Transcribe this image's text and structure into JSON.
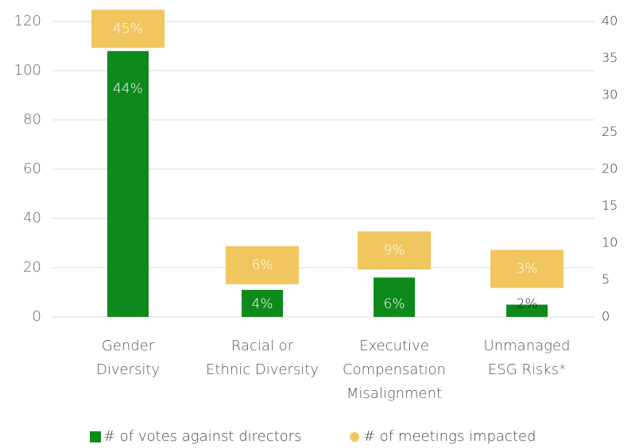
{
  "chart_data": {
    "type": "bar",
    "categories": [
      [
        "Gender",
        "Diversity"
      ],
      [
        "Racial or",
        "Ethnic Diversity"
      ],
      [
        "Executive",
        "Compensation",
        "Misalignment"
      ],
      [
        "Unmanaged",
        "ESG Risks*"
      ]
    ],
    "series": [
      {
        "name": "# of votes against directors",
        "color": "#0e8a1c",
        "type": "bar",
        "values": [
          108,
          11,
          16,
          5
        ],
        "labels": [
          "44%",
          "4%",
          "6%",
          "2%"
        ]
      },
      {
        "name": "# of meetings impacted",
        "color": "#f1c65e",
        "type": "label-box",
        "axis": "y2",
        "values": [
          39,
          7,
          9,
          6.5
        ],
        "labels": [
          "45%",
          "6%",
          "9%",
          "3%"
        ]
      }
    ],
    "ylim": [
      0,
      120
    ],
    "yticks": [
      0,
      20,
      40,
      60,
      80,
      100,
      120
    ],
    "y2lim": [
      0,
      40
    ],
    "y2ticks": [
      0,
      5,
      10,
      15,
      20,
      25,
      30,
      35,
      40
    ],
    "grid": true,
    "legend": "bottom"
  }
}
